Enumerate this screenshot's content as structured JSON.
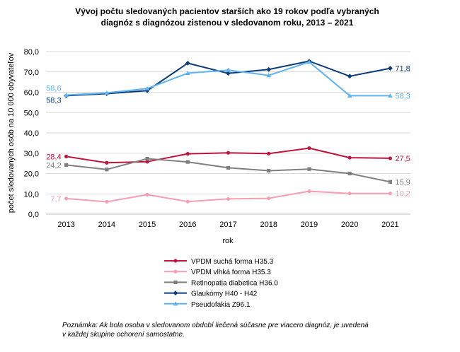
{
  "chart_data": {
    "type": "line",
    "title_lines": [
      "Vývoj počtu sledovaných pacientov starších ako 19 rokov podľa vybraných",
      "diagnóz s diagnózou zistenou v sledovanom roku, 2013 – 2021"
    ],
    "xlabel": "rok",
    "ylabel": "počet sledovaných osôb na 10 000 obyvateľov",
    "categories": [
      "2013",
      "2014",
      "2015",
      "2016",
      "2017",
      "2018",
      "2019",
      "2020",
      "2021"
    ],
    "ylim": [
      0,
      80
    ],
    "yticks": [
      "0,0",
      "10,0",
      "20,0",
      "30,0",
      "40,0",
      "50,0",
      "60,0",
      "70,0",
      "80,0"
    ],
    "grid": true,
    "legend_position": "bottom",
    "series": [
      {
        "name": "VPDM suchá forma H35.3",
        "color": "#c0143c",
        "marker": "circle",
        "values": [
          28.4,
          25.3,
          25.8,
          29.7,
          30.2,
          29.8,
          32.5,
          27.8,
          27.5
        ],
        "labels": [
          {
            "index": 0,
            "text": "28,4",
            "side": "left"
          },
          {
            "index": 8,
            "text": "27,5",
            "side": "right"
          }
        ]
      },
      {
        "name": "VPDM vlhká forma H35.3",
        "color": "#f4a0b4",
        "marker": "circle",
        "values": [
          7.7,
          6.1,
          9.6,
          6.2,
          7.5,
          7.8,
          11.3,
          10.2,
          10.2
        ],
        "labels": [
          {
            "index": 0,
            "text": "7,7",
            "side": "left"
          },
          {
            "index": 8,
            "text": "10,2",
            "side": "right"
          }
        ]
      },
      {
        "name": "Retinopatia diabetica H36.0",
        "color": "#808080",
        "marker": "square",
        "values": [
          24.2,
          22.0,
          27.3,
          25.7,
          22.8,
          21.4,
          22.2,
          20.0,
          15.9
        ],
        "labels": [
          {
            "index": 0,
            "text": "24,2",
            "side": "left"
          },
          {
            "index": 8,
            "text": "15,9",
            "side": "right"
          }
        ]
      },
      {
        "name": "Glaukómy H40 - H42",
        "color": "#0b3c78",
        "marker": "diamond",
        "values": [
          58.3,
          59.3,
          60.8,
          74.3,
          69.3,
          71.2,
          75.3,
          67.9,
          71.8
        ],
        "labels": [
          {
            "index": 0,
            "text": "58,3",
            "side": "left-below"
          },
          {
            "index": 8,
            "text": "71,8",
            "side": "right"
          }
        ]
      },
      {
        "name": "Pseudofakia Z96.1",
        "color": "#5fb4f0",
        "marker": "triangle",
        "values": [
          58.6,
          59.7,
          61.8,
          69.4,
          70.9,
          68.3,
          74.9,
          58.3,
          58.3
        ],
        "labels": [
          {
            "index": 0,
            "text": "58,6",
            "side": "left-above"
          },
          {
            "index": 8,
            "text": "58,3",
            "side": "right"
          }
        ]
      }
    ],
    "note_lines": [
      "Poznámka: Ak bola osoba v sledovanom období liečená súčasne pre viacero diagnóz, je uvedená",
      "v každej skupine ochorení samostatne."
    ]
  }
}
